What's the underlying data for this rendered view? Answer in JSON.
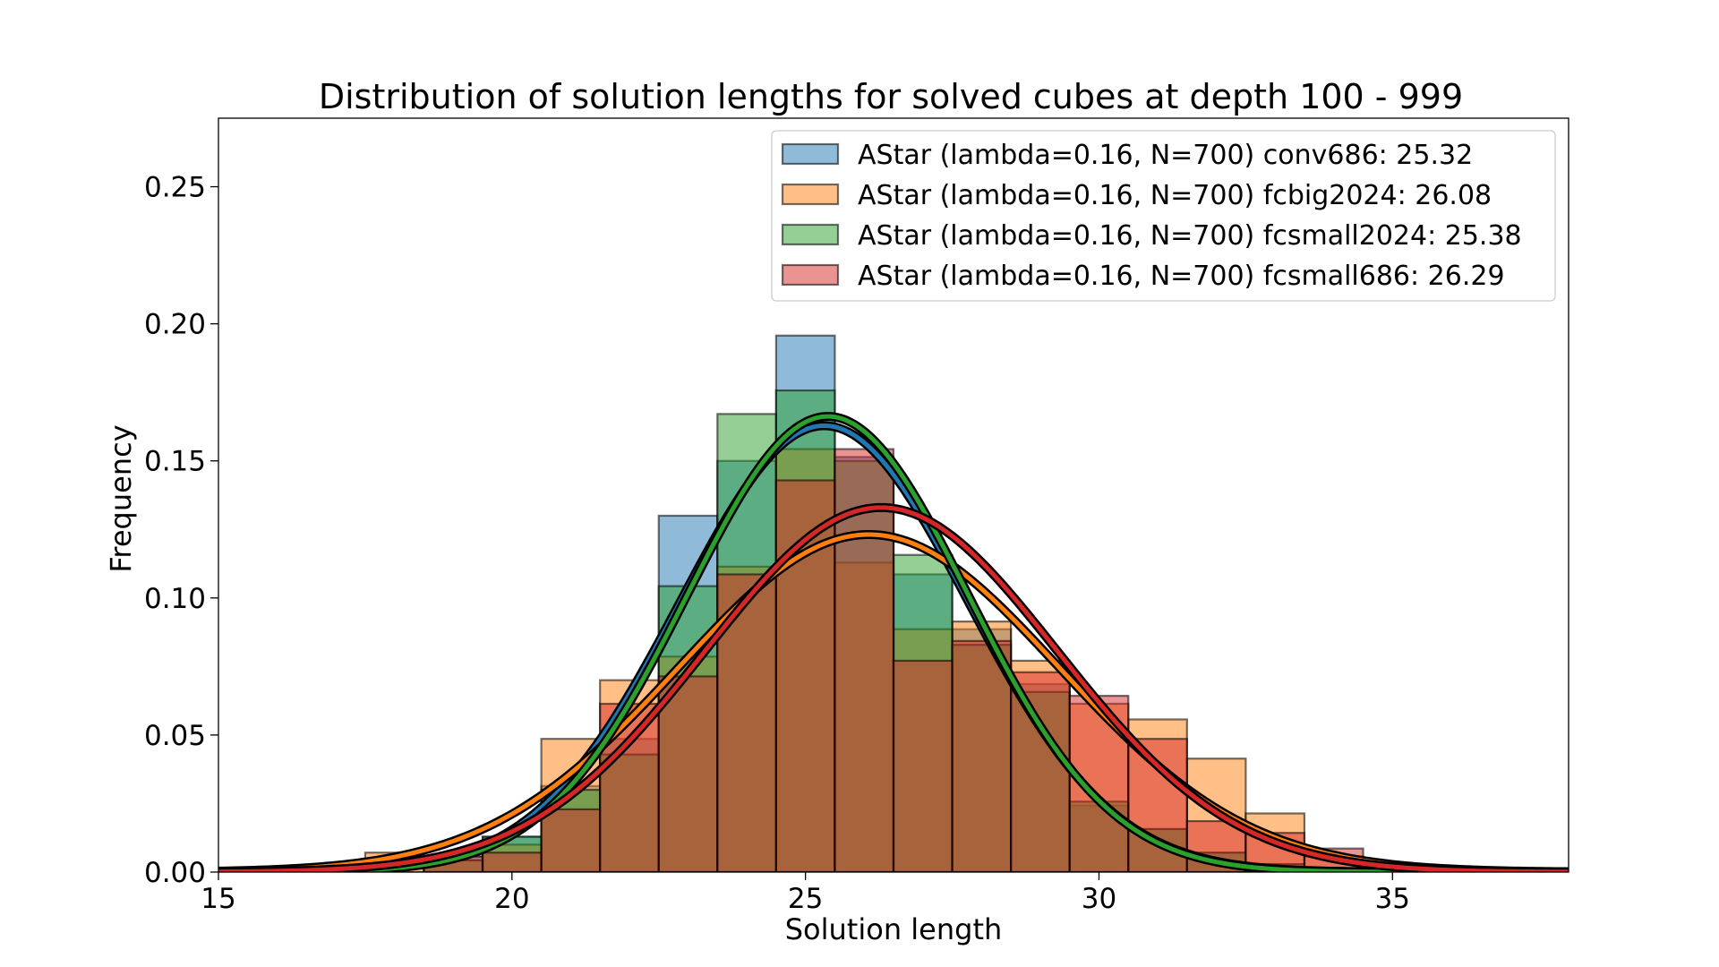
{
  "chart_data": {
    "type": "bar",
    "title": "Distribution of solution lengths for solved cubes at depth 100 - 999",
    "xlabel": "Solution length",
    "ylabel": "Frequency",
    "xlim": [
      15,
      38
    ],
    "ylim": [
      0,
      0.275
    ],
    "xticks": [
      15,
      20,
      25,
      30,
      35
    ],
    "yticks": [
      0.0,
      0.05,
      0.1,
      0.15,
      0.2,
      0.25
    ],
    "ytick_labels": [
      "0.00",
      "0.05",
      "0.10",
      "0.15",
      "0.20",
      "0.25"
    ],
    "bin_width": 1,
    "bin_centers": [
      18,
      19,
      20,
      21,
      22,
      23,
      24,
      25,
      26,
      27,
      28,
      29,
      30,
      31,
      32,
      33,
      34
    ],
    "legend_position": "top-right",
    "grid": false,
    "series": [
      {
        "name": "AStar (lambda=0.16, N=700) conv686: 25.32",
        "color": "#1f77b4",
        "values": [
          0,
          0.0057,
          0.0129,
          0.0314,
          0.0486,
          0.13,
          0.15,
          0.1957,
          0.1514,
          0.1086,
          0.0886,
          0.0686,
          0.0243,
          0.0157,
          0.0071,
          0.0029,
          0
        ],
        "fit": {
          "mean": 25.32,
          "std": 2.45
        }
      },
      {
        "name": "AStar (lambda=0.16, N=700) fcbig2024: 26.08",
        "color": "#ff7f0e",
        "values": [
          0.0071,
          0.0043,
          0.01,
          0.0486,
          0.07,
          0.0786,
          0.1114,
          0.1543,
          0.1129,
          0.0886,
          0.0914,
          0.0771,
          0.0614,
          0.0557,
          0.0414,
          0.0214,
          0.0057
        ],
        "fit": {
          "mean": 26.08,
          "std": 3.24
        }
      },
      {
        "name": "AStar (lambda=0.16, N=700) fcsmall2024: 25.38",
        "color": "#2ca02c",
        "values": [
          0,
          0.0043,
          0.0129,
          0.03,
          0.0429,
          0.1043,
          0.1671,
          0.1757,
          0.15,
          0.1157,
          0.0829,
          0.0657,
          0.0257,
          0.0157,
          0.0071,
          0.0029,
          0
        ],
        "fit": {
          "mean": 25.38,
          "std": 2.4
        }
      },
      {
        "name": "AStar (lambda=0.16, N=700) fcsmall686: 26.29",
        "color": "#d62728",
        "values": [
          0,
          0.0057,
          0.0071,
          0.0229,
          0.0614,
          0.0714,
          0.1086,
          0.1429,
          0.1543,
          0.0771,
          0.0843,
          0.0729,
          0.0643,
          0.0486,
          0.0186,
          0.0143,
          0.0086
        ],
        "fit": {
          "mean": 26.29,
          "std": 3.0
        }
      }
    ]
  }
}
